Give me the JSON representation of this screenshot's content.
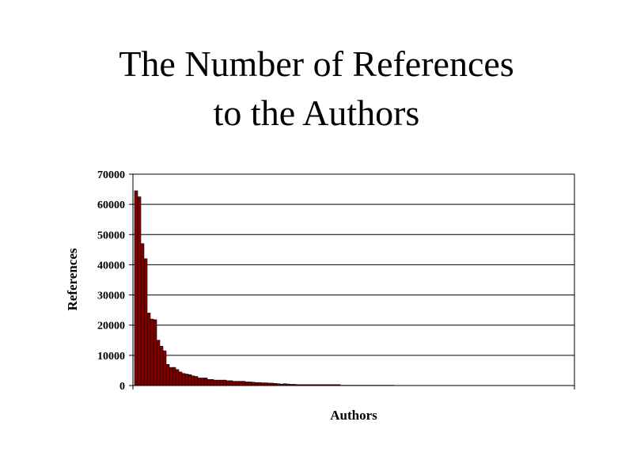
{
  "chart_data": {
    "type": "bar",
    "title_lines": [
      "The Number of References",
      "to the Authors"
    ],
    "xlabel": "Authors",
    "ylabel": "References",
    "ylim": [
      0,
      70000
    ],
    "yticks": [
      "0",
      "10000",
      "20000",
      "30000",
      "40000",
      "50000",
      "60000",
      "70000"
    ],
    "grid": true,
    "legend": "none",
    "bar_color": "#800000",
    "values": [
      64500,
      62500,
      47000,
      42000,
      24000,
      22000,
      21800,
      15000,
      13000,
      11500,
      7000,
      6000,
      6000,
      5300,
      4500,
      4000,
      3800,
      3600,
      3200,
      3000,
      2500,
      2500,
      2500,
      2000,
      2000,
      1800,
      1800,
      1800,
      1800,
      1600,
      1600,
      1400,
      1400,
      1400,
      1400,
      1200,
      1200,
      1100,
      1000,
      1000,
      900,
      900,
      800,
      800,
      700,
      600,
      500,
      600,
      500,
      400,
      400,
      300,
      300,
      300,
      300,
      300,
      300,
      300,
      300,
      300,
      300,
      300,
      300,
      300,
      300,
      100,
      100,
      100,
      100,
      100,
      100,
      100,
      100,
      100,
      100,
      100,
      100,
      100,
      100,
      100,
      100,
      100
    ]
  }
}
